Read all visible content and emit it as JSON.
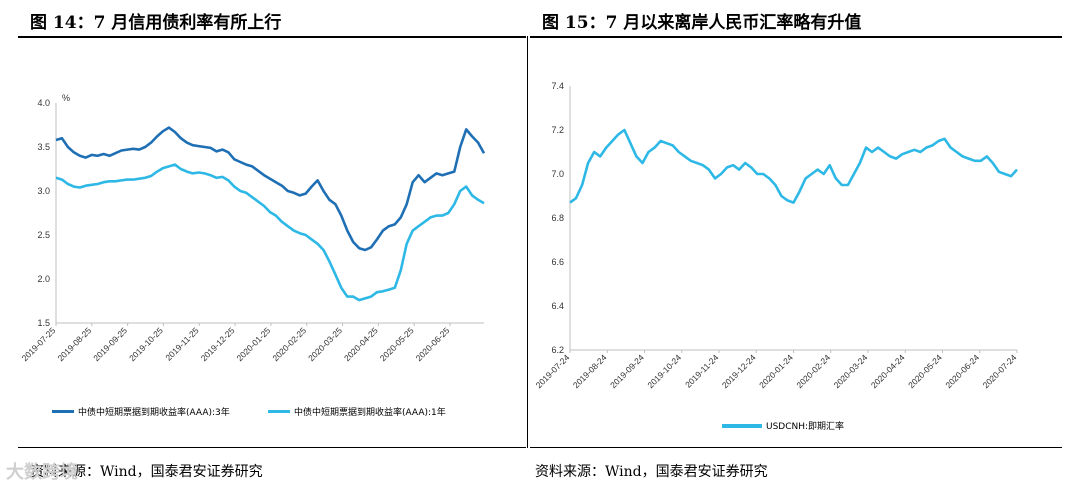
{
  "left": {
    "title": "图 14：7 月信用债利率有所上行",
    "source": "资料来源：Wind，国泰君安证券研究"
  },
  "right": {
    "title": "图 15：7 月以来离岸人民币汇率略有升值",
    "source": "资料来源：Wind，国泰君安证券研究"
  },
  "watermark": "大数跨境",
  "colors": {
    "dark_blue": "#1F6FB5",
    "light_blue": "#2EB8E6"
  },
  "chart_data": [
    {
      "type": "line",
      "title": "图 14：7 月信用债利率有所上行",
      "ylabel": "%",
      "ylim": [
        1.5,
        4.0
      ],
      "yticks": [
        "4.0",
        "3.5",
        "3.0",
        "2.5",
        "2.0",
        "1.5"
      ],
      "xlabels": [
        "2019-07-25",
        "2019-08-25",
        "2019-09-25",
        "2019-10-25",
        "2019-11-25",
        "2019-12-25",
        "2020-01-25",
        "2020-02-25",
        "2020-03-25",
        "2020-04-25",
        "2020-05-25",
        "2020-06-25"
      ],
      "series": [
        {
          "name": "中债中短期票据到期收益率(AAA):3年",
          "color": "#1F6FB5",
          "values": [
            3.58,
            3.6,
            3.5,
            3.44,
            3.4,
            3.38,
            3.41,
            3.4,
            3.42,
            3.4,
            3.43,
            3.46,
            3.47,
            3.48,
            3.47,
            3.5,
            3.55,
            3.62,
            3.68,
            3.72,
            3.67,
            3.6,
            3.55,
            3.52,
            3.51,
            3.5,
            3.49,
            3.45,
            3.47,
            3.44,
            3.36,
            3.33,
            3.3,
            3.28,
            3.23,
            3.18,
            3.14,
            3.1,
            3.06,
            3.0,
            2.98,
            2.95,
            2.97,
            3.05,
            3.12,
            3.0,
            2.9,
            2.85,
            2.72,
            2.55,
            2.42,
            2.35,
            2.33,
            2.36,
            2.45,
            2.55,
            2.6,
            2.62,
            2.7,
            2.85,
            3.1,
            3.18,
            3.1,
            3.15,
            3.2,
            3.18,
            3.2,
            3.22,
            3.5,
            3.7,
            3.62,
            3.55,
            3.43
          ]
        },
        {
          "name": "中债中短期票据到期收益率(AAA):1年",
          "color": "#2EB8E6",
          "values": [
            3.15,
            3.13,
            3.08,
            3.05,
            3.04,
            3.06,
            3.07,
            3.08,
            3.1,
            3.11,
            3.11,
            3.12,
            3.13,
            3.13,
            3.14,
            3.15,
            3.17,
            3.22,
            3.26,
            3.28,
            3.3,
            3.25,
            3.22,
            3.2,
            3.21,
            3.2,
            3.18,
            3.15,
            3.16,
            3.12,
            3.05,
            3.0,
            2.98,
            2.93,
            2.88,
            2.83,
            2.76,
            2.72,
            2.65,
            2.6,
            2.55,
            2.52,
            2.5,
            2.45,
            2.4,
            2.33,
            2.2,
            2.05,
            1.9,
            1.8,
            1.8,
            1.76,
            1.78,
            1.8,
            1.85,
            1.86,
            1.88,
            1.9,
            2.1,
            2.4,
            2.55,
            2.6,
            2.65,
            2.7,
            2.72,
            2.72,
            2.75,
            2.85,
            3.0,
            3.05,
            2.95,
            2.9,
            2.86
          ]
        }
      ]
    },
    {
      "type": "line",
      "title": "图 15：7 月以来离岸人民币汇率略有升值",
      "ylim": [
        6.2,
        7.4
      ],
      "yticks": [
        "7.4",
        "7.2",
        "7.0",
        "6.8",
        "6.6",
        "6.4",
        "6.2"
      ],
      "xlabels": [
        "2019-07-24",
        "2019-08-24",
        "2019-09-24",
        "2019-10-24",
        "2019-11-24",
        "2019-12-24",
        "2020-01-24",
        "2020-02-24",
        "2020-03-24",
        "2020-04-24",
        "2020-05-24",
        "2020-06-24",
        "2020-07-24"
      ],
      "series": [
        {
          "name": "USDCNH:即期汇率",
          "color": "#2EB8E6",
          "values": [
            6.87,
            6.89,
            6.95,
            7.05,
            7.1,
            7.08,
            7.12,
            7.15,
            7.18,
            7.2,
            7.14,
            7.08,
            7.05,
            7.1,
            7.12,
            7.15,
            7.14,
            7.13,
            7.1,
            7.08,
            7.06,
            7.05,
            7.04,
            7.02,
            6.98,
            7.0,
            7.03,
            7.04,
            7.02,
            7.05,
            7.03,
            7.0,
            7.0,
            6.98,
            6.95,
            6.9,
            6.88,
            6.87,
            6.92,
            6.98,
            7.0,
            7.02,
            7.0,
            7.04,
            6.98,
            6.95,
            6.95,
            7.0,
            7.05,
            7.12,
            7.1,
            7.12,
            7.1,
            7.08,
            7.07,
            7.09,
            7.1,
            7.11,
            7.1,
            7.12,
            7.13,
            7.15,
            7.16,
            7.12,
            7.1,
            7.08,
            7.07,
            7.06,
            7.06,
            7.08,
            7.05,
            7.01,
            7.0,
            6.99,
            7.02
          ]
        }
      ]
    }
  ]
}
